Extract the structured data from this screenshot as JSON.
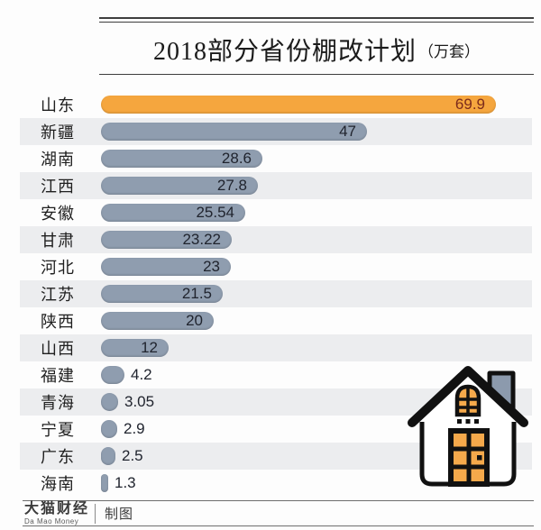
{
  "header": {
    "title": "2018部分省份棚改计划",
    "unit": "（万套）"
  },
  "chart_data": {
    "type": "bar",
    "orientation": "horizontal",
    "title": "2018部分省份棚改计划（万套）",
    "unit": "万套",
    "categories": [
      "山东",
      "新疆",
      "湖南",
      "江西",
      "安徽",
      "甘肃",
      "河北",
      "江苏",
      "陕西",
      "山西",
      "福建",
      "青海",
      "宁夏",
      "广东",
      "海南"
    ],
    "values": [
      69.9,
      47,
      28.6,
      27.8,
      25.54,
      23.22,
      23,
      21.5,
      20,
      12,
      4.2,
      3.05,
      2.9,
      2.5,
      1.3
    ],
    "highlight_index": 0,
    "xlim": [
      0,
      70
    ],
    "grid": false,
    "legend": false,
    "value_labels": true,
    "striped_rows": true
  },
  "colors": {
    "highlight_bar": "#F5A63E",
    "bar": "#8F9DAF",
    "stripe": "#ECEDEF",
    "value_text": "#20242E",
    "highlight_value_text": "#7B2B1C",
    "label_text": "#1F1F1F",
    "house_accent": "#F5A94B",
    "chimney": "#8C9AAD"
  },
  "footer": {
    "brand": "大猫财经",
    "brand_sub": "Da Mao Money",
    "credit": "制图"
  }
}
